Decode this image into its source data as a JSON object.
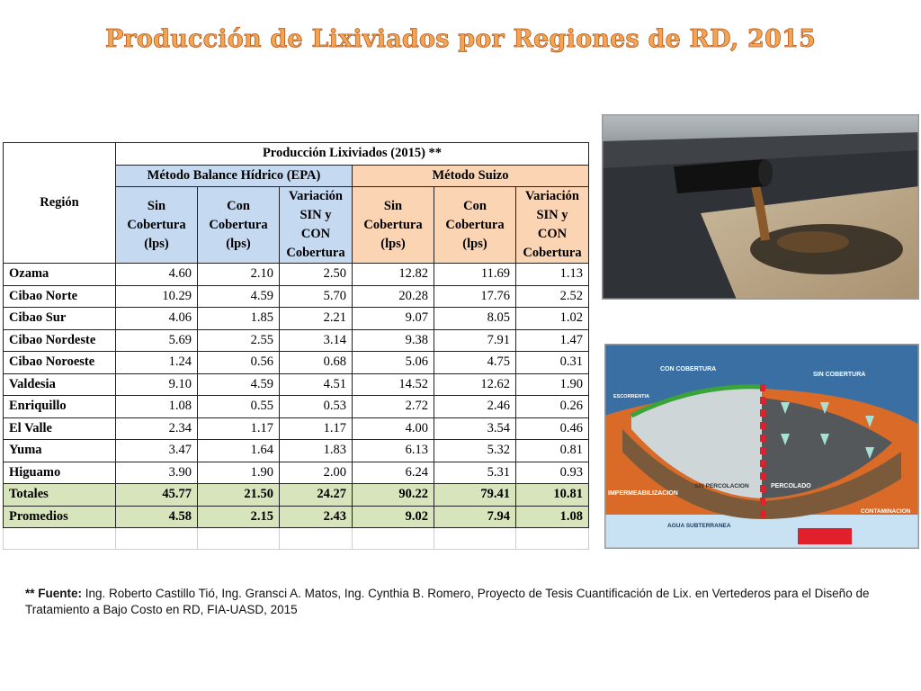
{
  "title": "Producción de Lixiviados por Regiones de RD, 2015",
  "table": {
    "region_header": "Región",
    "main_header": "Producción Lixiviados (2015) **",
    "method_epa": "Método Balance Hídrico (EPA)",
    "method_suizo": "Método Suizo",
    "col_labels": [
      [
        "Sin",
        "Cobertura",
        "(lps)"
      ],
      [
        "Con",
        "Cobertura",
        "(lps)"
      ],
      [
        "Variación",
        "SIN y CON",
        "Cobertura"
      ],
      [
        "Sin",
        "Cobertura",
        "(lps)"
      ],
      [
        "Con",
        "Cobertura",
        "(lps)"
      ],
      [
        "Variación",
        "SIN y CON",
        "Cobertura"
      ]
    ],
    "rows": [
      {
        "region": "Ozama",
        "values": [
          "4.60",
          "2.10",
          "2.50",
          "12.82",
          "11.69",
          "1.13"
        ]
      },
      {
        "region": "Cibao Norte",
        "values": [
          "10.29",
          "4.59",
          "5.70",
          "20.28",
          "17.76",
          "2.52"
        ]
      },
      {
        "region": "Cibao Sur",
        "values": [
          "4.06",
          "1.85",
          "2.21",
          "9.07",
          "8.05",
          "1.02"
        ]
      },
      {
        "region": "Cibao Nordeste",
        "values": [
          "5.69",
          "2.55",
          "3.14",
          "9.38",
          "7.91",
          "1.47"
        ]
      },
      {
        "region": "Cibao Noroeste",
        "values": [
          "1.24",
          "0.56",
          "0.68",
          "5.06",
          "4.75",
          "0.31"
        ]
      },
      {
        "region": "Valdesia",
        "values": [
          "9.10",
          "4.59",
          "4.51",
          "14.52",
          "12.62",
          "1.90"
        ]
      },
      {
        "region": "Enriquillo",
        "values": [
          "1.08",
          "0.55",
          "0.53",
          "2.72",
          "2.46",
          "0.26"
        ]
      },
      {
        "region": "El Valle",
        "values": [
          "2.34",
          "1.17",
          "1.17",
          "4.00",
          "3.54",
          "0.46"
        ]
      },
      {
        "region": "Yuma",
        "values": [
          "3.47",
          "1.64",
          "1.83",
          "6.13",
          "5.32",
          "0.81"
        ]
      },
      {
        "region": "Higuamo",
        "values": [
          "3.90",
          "1.90",
          "2.00",
          "6.24",
          "5.31",
          "0.93"
        ]
      }
    ],
    "totals": {
      "region": "Totales",
      "values": [
        "45.77",
        "21.50",
        "24.27",
        "90.22",
        "79.41",
        "10.81"
      ]
    },
    "averages": {
      "region": "Promedios",
      "values": [
        "4.58",
        "2.15",
        "2.43",
        "9.02",
        "7.94",
        "1.08"
      ]
    }
  },
  "diagram_labels": {
    "con_cobertura": "CON COBERTURA",
    "sin_cobertura": "SIN COBERTURA",
    "escorrentia": "ESCORRENTIA",
    "impermeabilizacion": "IMPERMEABILIZACION",
    "sin_percolacion": "SIN PERCOLACION",
    "percolado": "PERCOLADO",
    "contaminacion": "CONTAMINACION",
    "agua_subterranea": "AGUA SUBTERRANEA"
  },
  "source": {
    "prefix": "** Fuente:",
    "text": " Ing. Roberto Castillo Tió, Ing. Gransci  A. Matos, Ing. Cynthia B. Romero, Proyecto de Tesis Cuantificación de Lix. en Vertederos para el Diseño de Tratamiento a Bajo Costo en RD, FIA-UASD, 2015"
  },
  "colors": {
    "title_fill": "#f2a654",
    "title_stroke": "#b8571a",
    "epa_header": "#c5d9f1",
    "suizo_header": "#fbd4b4",
    "totals_row": "#d7e4bc"
  }
}
